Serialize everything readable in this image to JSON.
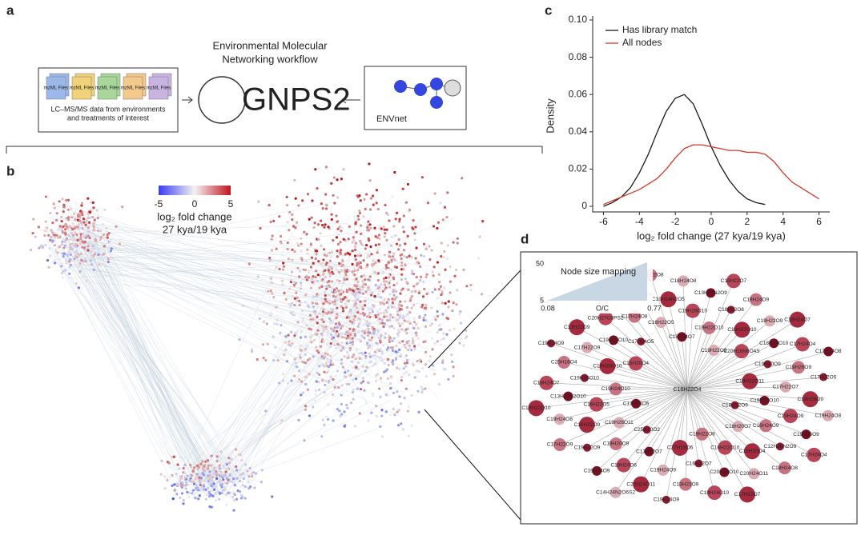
{
  "panel_labels": [
    "a",
    "b",
    "c",
    "d"
  ],
  "workflow": {
    "title_lines": [
      "Environmental Molecular",
      "Networking workflow"
    ],
    "files": [
      "mzML Files",
      "mzML Files",
      "mzML Files",
      "mzML Files",
      "mzML Files"
    ],
    "data_caption": [
      "LC–MS/MS data from environments",
      "and treatments of interest"
    ],
    "logo": "GNPS2",
    "database": "ENVnet"
  },
  "network": {
    "colorbar": {
      "range": [
        -5,
        5
      ],
      "ticks": [
        -5,
        0,
        5
      ],
      "label_lines": [
        "log₂ fold change",
        "27 kya/19 kya"
      ]
    }
  },
  "chart_data": {
    "type": "line",
    "xlabel": "log₂ fold change (27 kya/19 kya)",
    "ylabel": "Density",
    "x": [
      -6,
      -5.5,
      -5,
      -4.5,
      -4,
      -3.5,
      -3,
      -2.5,
      -2,
      -1.5,
      -1,
      -0.5,
      0,
      0.5,
      1,
      1.5,
      2,
      2.5,
      3,
      3.5,
      4,
      4.5,
      5,
      5.5,
      6
    ],
    "series": [
      {
        "name": "Has library match",
        "color": "#1a1a1a",
        "values": [
          0.0,
          0.002,
          0.005,
          0.01,
          0.018,
          0.028,
          0.04,
          0.051,
          0.058,
          0.06,
          0.055,
          0.044,
          0.032,
          0.022,
          0.014,
          0.008,
          0.004,
          0.002,
          0.001,
          null,
          null,
          null,
          null,
          null,
          null
        ]
      },
      {
        "name": "All nodes",
        "color": "#d43a2a",
        "values": [
          0.001,
          0.003,
          0.005,
          0.007,
          0.009,
          0.012,
          0.015,
          0.02,
          0.026,
          0.031,
          0.033,
          0.033,
          0.032,
          0.031,
          0.03,
          0.03,
          0.029,
          0.029,
          0.028,
          0.024,
          0.018,
          0.013,
          0.01,
          0.007,
          0.004
        ]
      }
    ],
    "xlim": [
      -6.6,
      6.6
    ],
    "ylim": [
      -0.003,
      0.1
    ],
    "xticks": [
      -6,
      -4,
      -2,
      0,
      2,
      4,
      6
    ],
    "yticks": [
      0,
      0.02,
      0.04,
      0.06,
      0.08,
      {
        "value": 0.1,
        "label": "0.10"
      }
    ],
    "legend": "upper left"
  },
  "subnetwork": {
    "legend_title": "Node size mapping",
    "size_ticks": [
      50,
      5
    ],
    "oc_ticks": [
      0.08,
      0.77
    ],
    "oc_label": "O/C",
    "center": "C16H22O4",
    "nodes": [
      "C18H22O9",
      "C17H24O5",
      "C19H22O9",
      "C19H22O8",
      "C15H20O4",
      "C19H22O11",
      "C25H20O2",
      "C18H24O7",
      "C18H20O7",
      "C19H24O10",
      "C20H16N6O4S",
      "C27H16O6",
      "C17H24O5",
      "C19H20O10",
      "C19H26O11",
      "C19H22O10",
      "C16H22O10",
      "C19H28O10",
      "C19H20O9",
      "C17H22O7",
      "C16H22O5",
      "C16H24O9",
      "C16H22O5",
      "C19H22O10",
      "C16H22O7",
      "C19H22O10",
      "C17H22O7",
      "C19H20O9",
      "C19H28O10",
      "C15H20O4",
      "C19H26O10",
      "C18H24O10",
      "C19H24O9",
      "C17H24O8",
      "C19H24O9",
      "C19H22O9",
      "C18H22O8",
      "C20H24O10",
      "C17H22O9",
      "C19H26O9",
      "C18H24O6",
      "C10H14N2O5",
      "C12H20N2O9",
      "C13H22N2O10",
      "C19H22O9",
      "C13H22O9",
      "C20H27O3PS2",
      "C19H26O9",
      "C19H22O9",
      "C13H22N2O9",
      "C20H24O11",
      "C25H16O4",
      "C17H24O4",
      "C20H24O11",
      "C16H20O6",
      "C19H26O9",
      "C19H24O8",
      "C19H24O9",
      "C19H24O10",
      "C13H22O9",
      "C17H22O5",
      "C19H24O9",
      "C18H24O8",
      "C19H24O8",
      "C18H24O7",
      "C18H24O7",
      "C19H24O9",
      "C18H22O9",
      "C19H24O8",
      "C17H22O9",
      "C18H22O7",
      "C17H22O7",
      "C19H24O9",
      "C17H24O8",
      "C14H24N2O6S2",
      "C18H22O8",
      "C17H24O4",
      "C19H22O10"
    ]
  }
}
